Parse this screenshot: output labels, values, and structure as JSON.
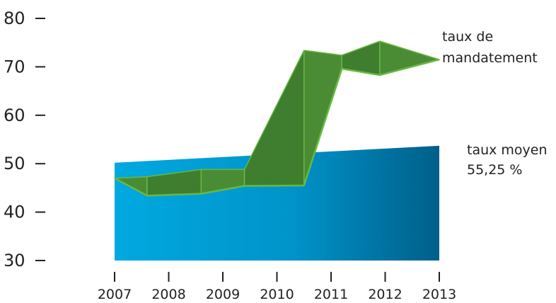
{
  "chart_data": {
    "type": "area",
    "categories": [
      "2007",
      "2008",
      "2009",
      "2010",
      "2011",
      "2012",
      "2013"
    ],
    "yticks": [
      "80",
      "70",
      "60",
      "50",
      "40",
      "30"
    ],
    "ylim": [
      30,
      80
    ],
    "series": [
      {
        "name": "taux moyen",
        "kind": "area",
        "x": [
          2007,
          2013
        ],
        "values": [
          50.2,
          53.7
        ],
        "color_start": "#00A9E0",
        "color_end": "#005F8A"
      },
      {
        "name": "taux de mandatement",
        "kind": "ribbon",
        "x": [
          2007,
          2007.6,
          2008.6,
          2009.4,
          2010.5,
          2011.2,
          2011.9,
          2013
        ],
        "values": [
          47,
          43.4,
          43.8,
          45.4,
          45.5,
          69.6,
          68.3,
          71.5
        ],
        "upper": [
          47,
          47.3,
          48.8,
          48.8,
          73.4,
          72.4,
          75.3,
          71.5
        ],
        "color_top": "#3E7E2E",
        "color_side": "#4A8C34",
        "outline": "#6AB842"
      }
    ],
    "annotations": [
      {
        "id": "mandatement",
        "lines": [
          "taux de",
          "mandatement"
        ]
      },
      {
        "id": "moyen",
        "lines": [
          "taux moyen",
          "55,25 %"
        ]
      }
    ],
    "grid": false,
    "legend": "none"
  }
}
